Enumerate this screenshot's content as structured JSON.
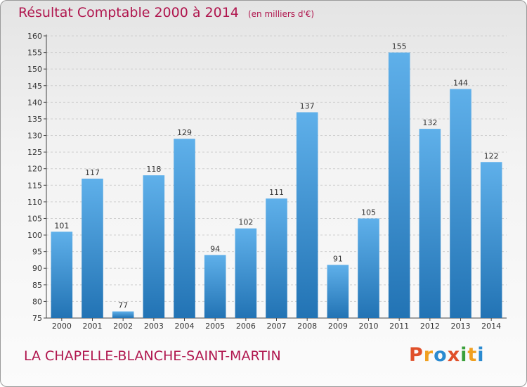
{
  "title": "Résultat Comptable 2000 à 2014",
  "subtitle": "(en milliers d'€)",
  "commune": "LA CHAPELLE-BLANCHE-SAINT-MARTIN",
  "brand": "Proxiti",
  "colors": {
    "title": "#b0164e",
    "bar_top": "#5fb0ea",
    "bar_bottom": "#2273b4",
    "grid": "#cfcfcf",
    "brand_letters": [
      "#e0502a",
      "#f0a020",
      "#2a8ad0",
      "#e0502a",
      "#3aa03a",
      "#f0a020",
      "#2a8ad0"
    ]
  },
  "chart_data": {
    "type": "bar",
    "categories": [
      "2000",
      "2001",
      "2002",
      "2003",
      "2004",
      "2005",
      "2006",
      "2007",
      "2008",
      "2009",
      "2010",
      "2011",
      "2012",
      "2013",
      "2014"
    ],
    "values": [
      101,
      117,
      77,
      118,
      129,
      94,
      102,
      111,
      137,
      91,
      105,
      155,
      132,
      144,
      122
    ],
    "ylim": [
      75,
      160
    ],
    "yticks": [
      75,
      80,
      85,
      90,
      95,
      100,
      105,
      110,
      115,
      120,
      125,
      130,
      135,
      140,
      145,
      150,
      155,
      160
    ],
    "grid": true,
    "title": "Résultat Comptable 2000 à 2014",
    "xlabel": "",
    "ylabel": ""
  }
}
